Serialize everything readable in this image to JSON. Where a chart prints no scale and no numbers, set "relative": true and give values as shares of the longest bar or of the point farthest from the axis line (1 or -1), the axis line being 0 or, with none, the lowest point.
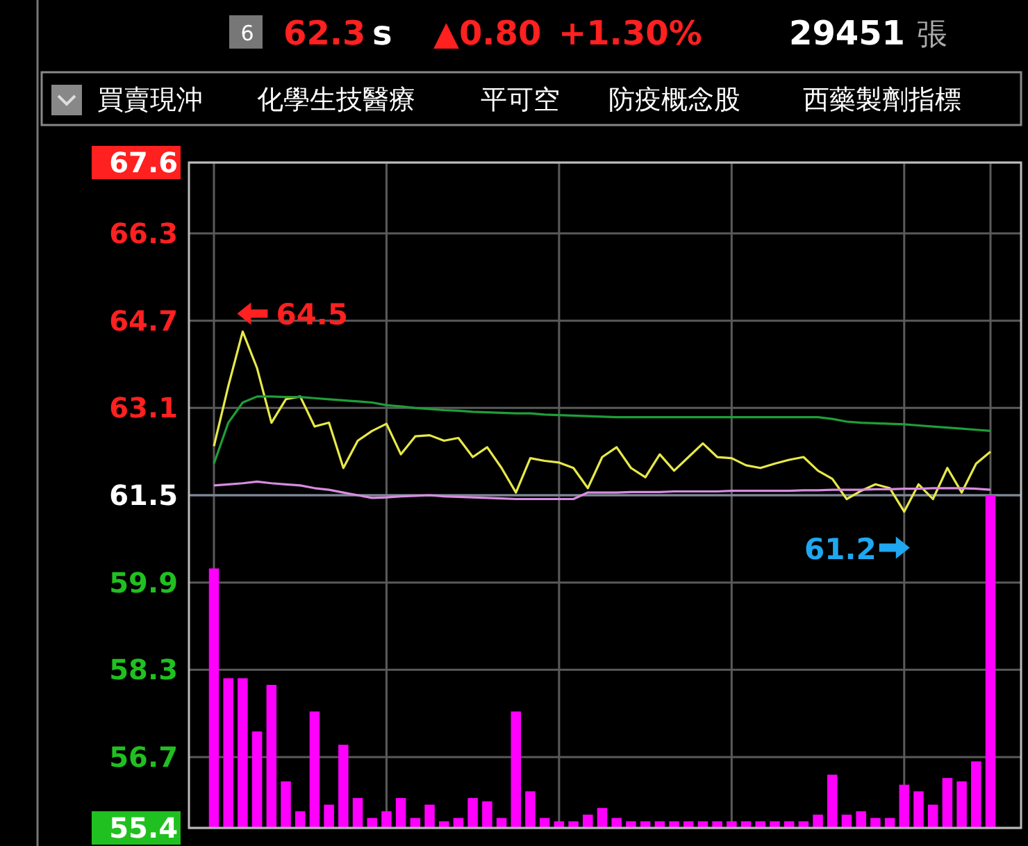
{
  "chart_data": [
    {
      "type": "line",
      "categories": [
        null,
        null,
        null,
        null,
        null,
        null,
        null,
        null,
        null,
        null,
        null,
        null,
        null,
        null,
        null,
        null,
        null,
        null,
        null,
        null,
        null,
        null,
        null,
        null,
        null,
        null,
        null,
        null,
        null,
        null,
        null,
        null,
        null,
        null,
        null,
        null,
        null,
        null,
        null,
        null,
        null,
        null,
        null,
        null,
        null,
        null,
        null,
        null,
        null,
        null,
        null,
        null,
        null,
        null,
        null
      ],
      "ylim": [
        55.4,
        67.6
      ],
      "yticks": [
        55.4,
        56.7,
        58.3,
        59.9,
        61.5,
        63.1,
        64.7,
        66.3,
        67.6
      ],
      "grid": true,
      "ref_lines": [
        {
          "axis": "y",
          "value": 61.5,
          "color": "#7d8a99"
        }
      ],
      "annotations": [
        "6",
        "62.3",
        "s",
        "▲0.80",
        "+1.30%",
        "29451",
        "張",
        "買賣現沖",
        "化學生技醫療",
        "平可空",
        "防疫概念股",
        "西藥製劑指標",
        "64.5",
        "61.2"
      ],
      "series": [
        {
          "color": "#e8e84a",
          "values": [
            62.4,
            63.5,
            64.5,
            63.83,
            62.83,
            63.26,
            63.31,
            62.76,
            62.83,
            62.0,
            62.5,
            62.68,
            62.81,
            62.25,
            62.58,
            62.6,
            62.5,
            62.55,
            62.2,
            62.38,
            62.0,
            61.55,
            62.18,
            62.13,
            62.1,
            62.0,
            61.63,
            62.2,
            62.38,
            62.0,
            61.83,
            62.25,
            61.95,
            62.2,
            62.45,
            62.2,
            62.18,
            62.05,
            62.0,
            62.08,
            62.15,
            62.2,
            61.95,
            61.8,
            61.43,
            61.58,
            61.7,
            61.63,
            61.2,
            61.7,
            61.43,
            62.0,
            61.55,
            62.08,
            62.3
          ]
        },
        {
          "color": "#1e9e3a",
          "values": [
            62.08,
            62.83,
            63.2,
            63.31,
            63.31,
            63.3,
            63.3,
            63.28,
            63.26,
            63.24,
            63.22,
            63.2,
            63.15,
            63.13,
            63.1,
            63.08,
            63.06,
            63.05,
            63.03,
            63.02,
            63.01,
            63.0,
            63.0,
            62.98,
            62.97,
            62.96,
            62.95,
            62.94,
            62.93,
            62.93,
            62.93,
            62.93,
            62.93,
            62.93,
            62.93,
            62.93,
            62.93,
            62.93,
            62.93,
            62.93,
            62.93,
            62.93,
            62.93,
            62.9,
            62.85,
            62.83,
            62.82,
            62.81,
            62.8,
            62.78,
            62.76,
            62.74,
            62.72,
            62.7,
            62.68
          ]
        },
        {
          "color": "#d88ce0",
          "values": [
            61.68,
            61.7,
            61.72,
            61.75,
            61.72,
            61.7,
            61.68,
            61.63,
            61.6,
            61.55,
            61.5,
            61.45,
            61.46,
            61.48,
            61.49,
            61.5,
            61.48,
            61.47,
            61.46,
            61.45,
            61.44,
            61.43,
            61.43,
            61.43,
            61.43,
            61.43,
            61.55,
            61.55,
            61.55,
            61.56,
            61.56,
            61.56,
            61.57,
            61.57,
            61.57,
            61.57,
            61.58,
            61.58,
            61.58,
            61.58,
            61.58,
            61.59,
            61.59,
            61.6,
            61.6,
            61.6,
            61.61,
            61.61,
            61.62,
            61.62,
            61.63,
            61.63,
            61.63,
            61.62,
            61.6
          ]
        }
      ]
    },
    {
      "type": "bar",
      "relative": true,
      "color": "#ff00ff",
      "categories": [
        null,
        null,
        null,
        null,
        null,
        null,
        null,
        null,
        null,
        null,
        null,
        null,
        null,
        null,
        null,
        null,
        null,
        null,
        null,
        null,
        null,
        null,
        null,
        null,
        null,
        null,
        null,
        null,
        null,
        null,
        null,
        null,
        null,
        null,
        null,
        null,
        null,
        null,
        null,
        null,
        null,
        null,
        null,
        null,
        null,
        null,
        null,
        null,
        null,
        null,
        null,
        null,
        null,
        null,
        null
      ],
      "values": [
        0.78,
        0.45,
        0.45,
        0.29,
        0.43,
        0.14,
        0.05,
        0.35,
        0.07,
        0.25,
        0.09,
        0.03,
        0.05,
        0.09,
        0.03,
        0.07,
        0.02,
        0.03,
        0.09,
        0.08,
        0.03,
        0.35,
        0.11,
        0.03,
        0.02,
        0.02,
        0.04,
        0.06,
        0.03,
        0.02,
        0.02,
        0.02,
        0.02,
        0.02,
        0.02,
        0.02,
        0.02,
        0.02,
        0.02,
        0.02,
        0.02,
        0.02,
        0.04,
        0.16,
        0.04,
        0.05,
        0.03,
        0.03,
        0.13,
        0.11,
        0.07,
        0.15,
        0.14,
        0.2,
        1
      ]
    }
  ]
}
